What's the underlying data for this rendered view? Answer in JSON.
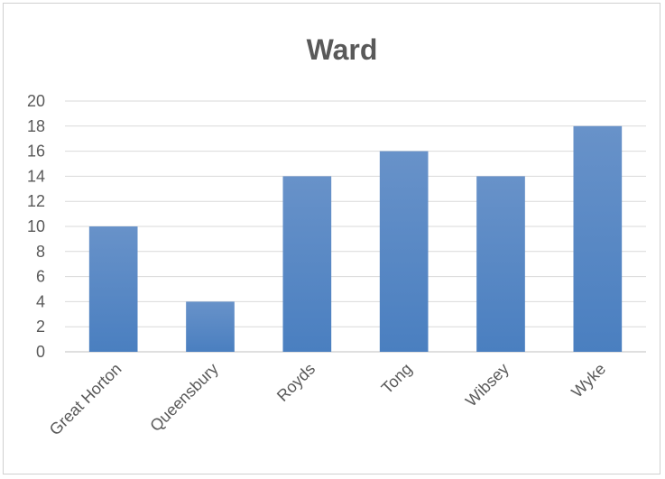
{
  "chart_data": {
    "type": "bar",
    "title": "Ward",
    "xlabel": "",
    "ylabel": "",
    "categories": [
      "Great Horton",
      "Queensbury",
      "Royds",
      "Tong",
      "Wibsey",
      "Wyke"
    ],
    "values": [
      10,
      4,
      14,
      16,
      14,
      18
    ],
    "ylim": [
      0,
      20
    ],
    "ytick_step": 2,
    "grid": true,
    "legend": "none",
    "bar_color": "#4a7fc0",
    "bar_color_top": "#6892c9"
  }
}
